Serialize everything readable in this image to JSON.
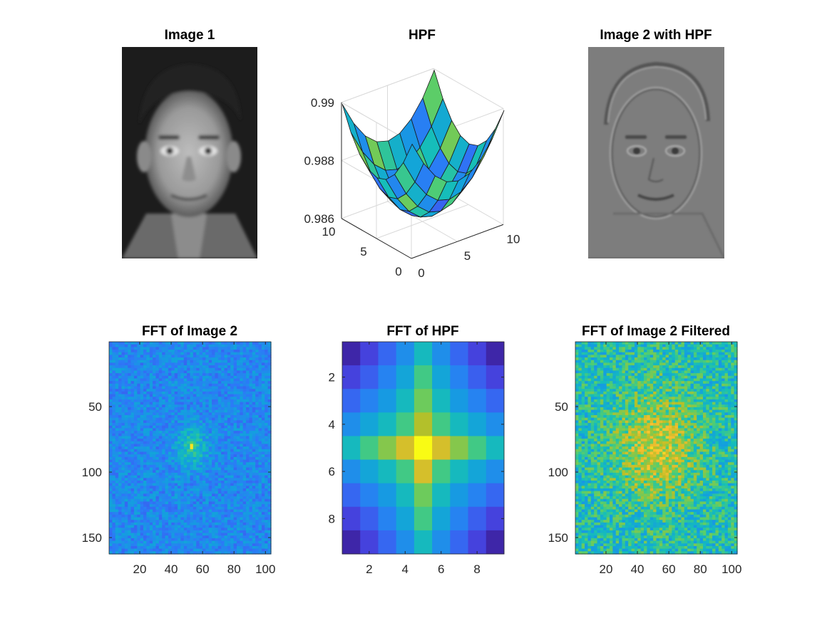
{
  "figure": {
    "background": "#ffffff",
    "panels": {
      "image1": {
        "title": "Image 1"
      },
      "hpf": {
        "title": "HPF"
      },
      "image2": {
        "title": "Image 2 with HPF"
      },
      "fft_image2": {
        "title": "FFT of Image 2"
      },
      "fft_hpf": {
        "title": "FFT of HPF"
      },
      "fft_filtered": {
        "title": "FFT of Image 2 Filtered"
      }
    }
  },
  "chart_data": [
    {
      "type": "image",
      "title": "Image 1",
      "colormap": "gray",
      "content": "grayscale face photograph",
      "axes_visible": false
    },
    {
      "type": "surface",
      "title": "HPF",
      "colormap": "parula",
      "grid_size": [
        9,
        9
      ],
      "x_ticks": [
        "0",
        "5",
        "10"
      ],
      "y_ticks": [
        "0",
        "5",
        "10"
      ],
      "z_ticks": [
        "0.986",
        "0.988",
        "0.99"
      ],
      "zlim": [
        0.986,
        0.99
      ],
      "z_min": 0.98615,
      "z_max": 0.98985,
      "note_shape": "paraboloid bowl, minimum at center"
    },
    {
      "type": "image",
      "title": "Image 2 with HPF",
      "colormap": "gray",
      "content": "high-pass filtered grayscale face photograph",
      "axes_visible": false
    },
    {
      "type": "heatmap",
      "title": "FFT of Image 2",
      "colormap": "parula",
      "x_ticks": [
        20,
        40,
        60,
        80,
        100
      ],
      "y_ticks": [
        50,
        100,
        150
      ],
      "xlim": [
        0.5,
        103.5
      ],
      "ylim": [
        0.5,
        162.5
      ],
      "peak": [
        53,
        81
      ]
    },
    {
      "type": "heatmap",
      "title": "FFT of HPF",
      "colormap": "parula",
      "rows": 9,
      "cols": 9,
      "x_ticks": [
        2,
        4,
        6,
        8
      ],
      "y_ticks": [
        2,
        4,
        6,
        8
      ],
      "xlim": [
        0.5,
        9.5
      ],
      "ylim": [
        0.5,
        9.5
      ],
      "values": [
        [
          0.0,
          0.1,
          0.2,
          0.32,
          0.48,
          0.32,
          0.2,
          0.1,
          0.0
        ],
        [
          0.1,
          0.18,
          0.28,
          0.4,
          0.58,
          0.4,
          0.28,
          0.18,
          0.1
        ],
        [
          0.2,
          0.28,
          0.36,
          0.48,
          0.65,
          0.48,
          0.36,
          0.28,
          0.2
        ],
        [
          0.32,
          0.4,
          0.48,
          0.58,
          0.74,
          0.58,
          0.48,
          0.4,
          0.32
        ],
        [
          0.48,
          0.58,
          0.68,
          0.8,
          1.0,
          0.8,
          0.68,
          0.58,
          0.48
        ],
        [
          0.32,
          0.4,
          0.48,
          0.58,
          0.8,
          0.58,
          0.48,
          0.4,
          0.32
        ],
        [
          0.2,
          0.28,
          0.36,
          0.48,
          0.65,
          0.48,
          0.36,
          0.28,
          0.2
        ],
        [
          0.1,
          0.18,
          0.28,
          0.4,
          0.58,
          0.4,
          0.28,
          0.18,
          0.1
        ],
        [
          0.0,
          0.1,
          0.2,
          0.32,
          0.48,
          0.32,
          0.2,
          0.1,
          0.0
        ]
      ]
    },
    {
      "type": "heatmap",
      "title": "FFT of Image 2 Filtered",
      "colormap": "parula",
      "x_ticks": [
        20,
        40,
        60,
        80,
        100
      ],
      "y_ticks": [
        50,
        100,
        150
      ],
      "xlim": [
        0.5,
        103.5
      ],
      "ylim": [
        0.5,
        162.5
      ]
    }
  ]
}
